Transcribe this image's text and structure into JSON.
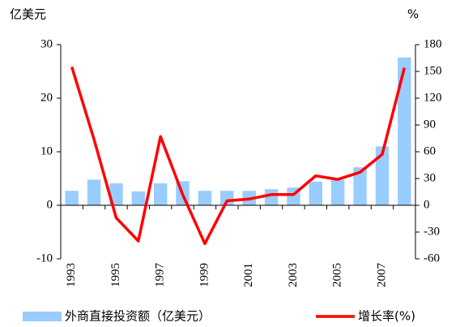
{
  "chart_data": {
    "type": "bar_line",
    "y_label": "亿美元",
    "y2_label": "%",
    "categories": [
      "1993",
      null,
      "1995",
      null,
      "1997",
      null,
      "1999",
      null,
      "2001",
      null,
      "2003",
      null,
      "2005",
      null,
      "2007",
      null
    ],
    "series": [
      {
        "name": "外商直接投资额（亿美元）",
        "type": "bar",
        "color": "#99ccff",
        "values": [
          2.7,
          4.8,
          4.1,
          2.6,
          4.1,
          4.5,
          2.7,
          2.7,
          2.7,
          3.0,
          3.3,
          4.4,
          4.8,
          7.1,
          11.0,
          27.6
        ]
      },
      {
        "name": "增长率(%)",
        "type": "line",
        "axis": "y2",
        "color": "#ff0000",
        "values": [
          155,
          74,
          -14,
          -40,
          77,
          12,
          -43,
          5,
          7,
          12,
          12,
          33,
          29,
          37,
          57,
          154
        ]
      }
    ],
    "ylim": [
      -10,
      30
    ],
    "yticks": [
      -10,
      0,
      10,
      20,
      30
    ],
    "y2lim": [
      -60,
      180
    ],
    "y2ticks": [
      -60,
      -30,
      0,
      30,
      60,
      90,
      120,
      150,
      180
    ]
  }
}
